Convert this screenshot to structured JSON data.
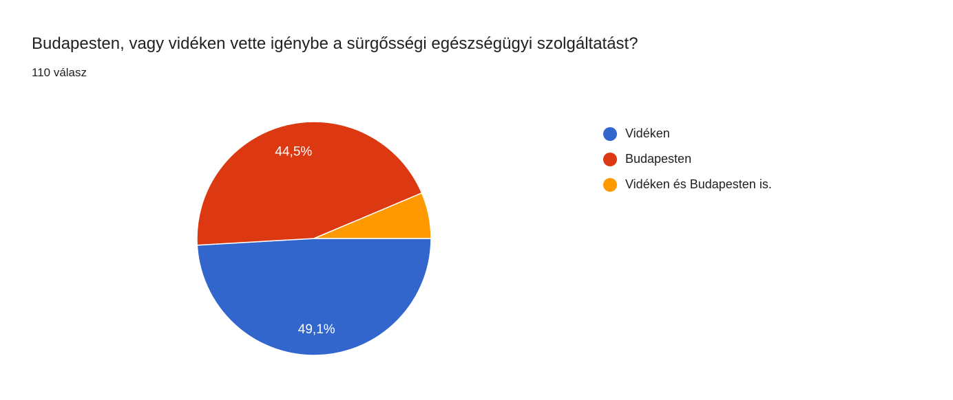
{
  "header": {
    "title": "Budapesten, vagy vidéken vette igénybe a sürgősségi egészségügyi szolgáltatást?",
    "subtitle": "110 válasz"
  },
  "chart_data": {
    "type": "pie",
    "title": "Budapesten, vagy vidéken vette igénybe a sürgősségi egészségügyi szolgáltatást?",
    "categories": [
      "Vidéken",
      "Budapesten",
      "Vidéken és Budapesten is."
    ],
    "values": [
      54,
      49,
      7
    ],
    "percent_labels": [
      "49,1%",
      "44,5%",
      ""
    ],
    "colors": [
      "#3366cc",
      "#dc3912",
      "#ff9900"
    ],
    "legend_position": "right"
  }
}
